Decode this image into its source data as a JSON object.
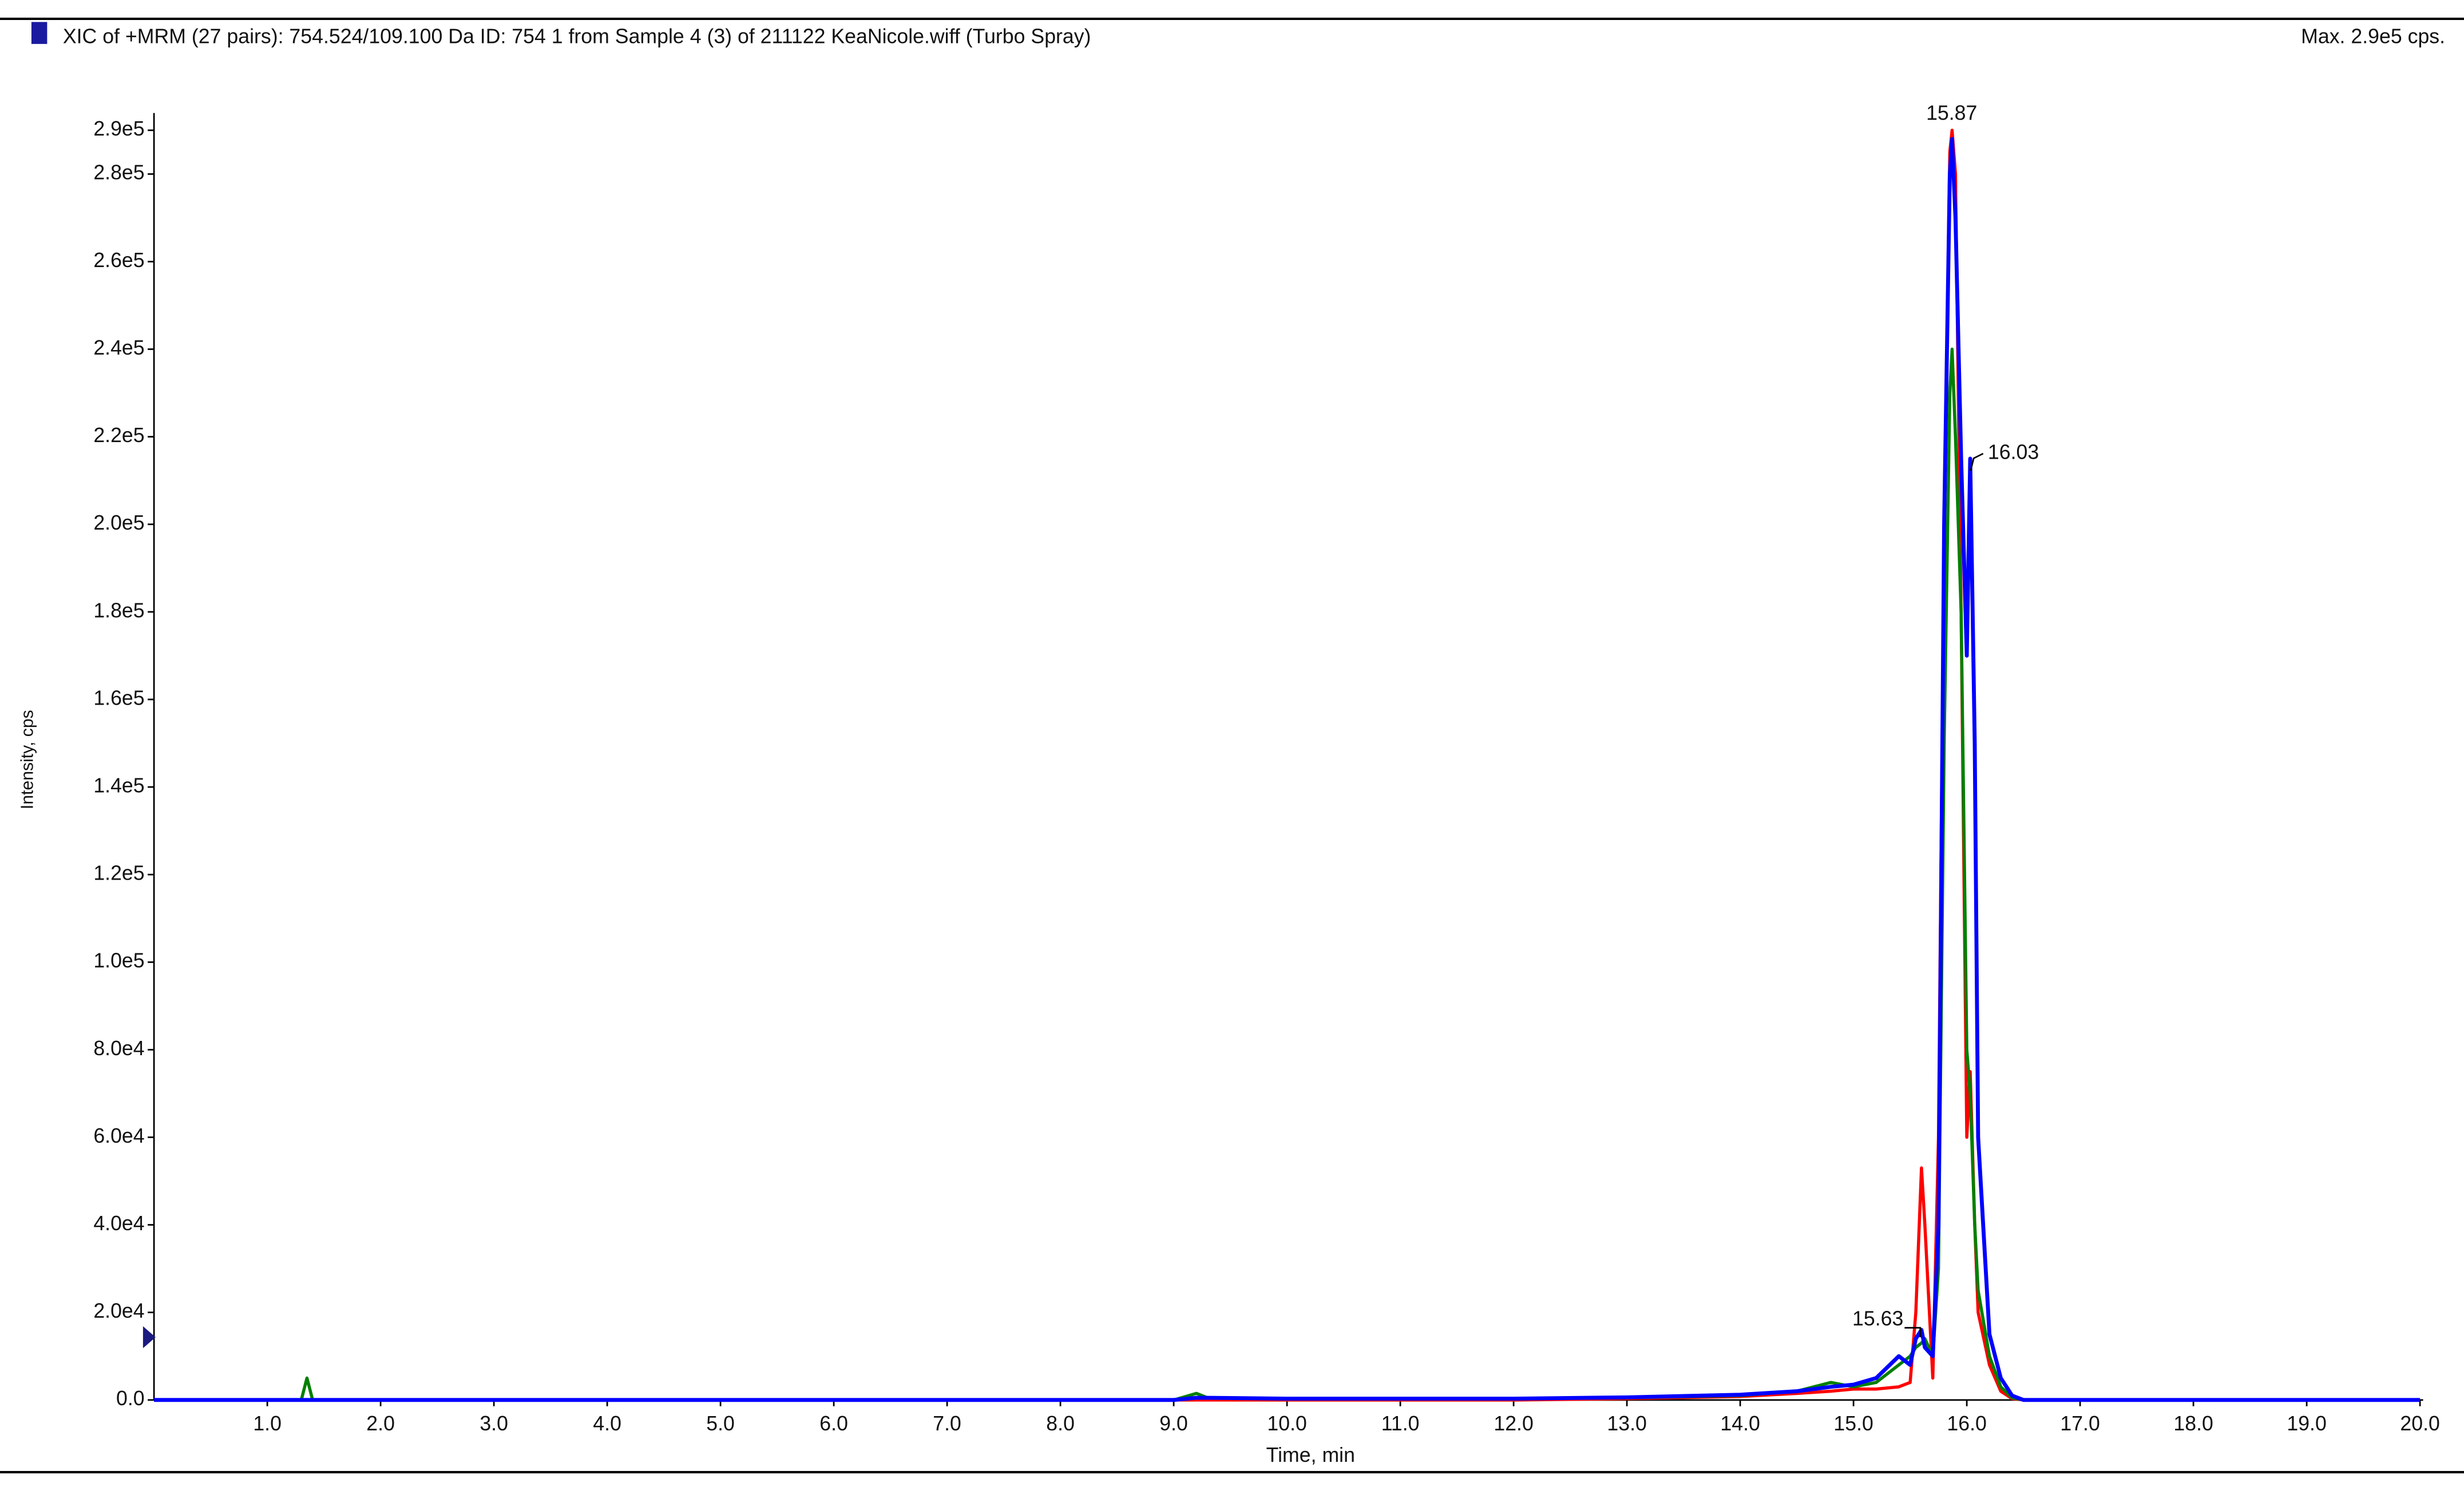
{
  "chart_data": {
    "type": "line",
    "title": "XIC of +MRM (27 pairs): 754.524/109.100 Da ID: 754 1 from Sample 4 (3) of 211122 KeaNicole.wiff (Turbo Spray)",
    "max_label": "Max. 2.9e5 cps.",
    "xlabel": "Time, min",
    "ylabel": "Intensity, cps",
    "annotations": [
      "15.87",
      "16.03",
      "15.63"
    ],
    "x": [
      0,
      1.3,
      1.35,
      1.4,
      1.5,
      3,
      5,
      7,
      9,
      9.2,
      9.3,
      10,
      12,
      13,
      14,
      14.5,
      14.8,
      15,
      15.2,
      15.4,
      15.5,
      15.55,
      15.6,
      15.63,
      15.7,
      15.75,
      15.8,
      15.85,
      15.87,
      15.9,
      15.95,
      16.0,
      16.03,
      16.07,
      16.1,
      16.2,
      16.3,
      16.4,
      16.5,
      17,
      20
    ],
    "series": [
      {
        "color": "#ff0000",
        "values": [
          0,
          0,
          0,
          0,
          0,
          0,
          0,
          0,
          0,
          0,
          0,
          0,
          0,
          300,
          800,
          1500,
          2000,
          2500,
          2500,
          3000,
          4000,
          20000,
          53000,
          40000,
          5000,
          60000,
          200000,
          285000,
          290000,
          280000,
          180000,
          60000,
          75000,
          40000,
          20000,
          8000,
          2000,
          300,
          0,
          0,
          0
        ]
      },
      {
        "color": "#008000",
        "values": [
          0,
          0,
          5000,
          0,
          0,
          0,
          0,
          0,
          0,
          1500,
          500,
          300,
          300,
          500,
          1000,
          2000,
          4000,
          3000,
          4000,
          8000,
          10000,
          12000,
          13000,
          14000,
          10000,
          30000,
          150000,
          230000,
          240000,
          220000,
          180000,
          80000,
          70000,
          40000,
          25000,
          10000,
          3000,
          500,
          0,
          0,
          0
        ]
      },
      {
        "color": "#0000ff",
        "values": [
          0,
          0,
          0,
          0,
          0,
          0,
          0,
          0,
          0,
          500,
          500,
          300,
          300,
          600,
          1200,
          2000,
          3000,
          3500,
          5000,
          10000,
          8000,
          14000,
          16000,
          12000,
          10000,
          40000,
          200000,
          280000,
          288000,
          270000,
          215000,
          170000,
          215000,
          150000,
          60000,
          15000,
          5000,
          1000,
          0,
          0,
          0
        ]
      }
    ],
    "xlim": [
      0,
      20
    ],
    "xticks": [
      {
        "value": 1,
        "label": "1.0"
      },
      {
        "value": 2,
        "label": "2.0"
      },
      {
        "value": 3,
        "label": "3.0"
      },
      {
        "value": 4,
        "label": "4.0"
      },
      {
        "value": 5,
        "label": "5.0"
      },
      {
        "value": 6,
        "label": "6.0"
      },
      {
        "value": 7,
        "label": "7.0"
      },
      {
        "value": 8,
        "label": "8.0"
      },
      {
        "value": 9,
        "label": "9.0"
      },
      {
        "value": 10,
        "label": "10.0"
      },
      {
        "value": 11,
        "label": "11.0"
      },
      {
        "value": 12,
        "label": "12.0"
      },
      {
        "value": 13,
        "label": "13.0"
      },
      {
        "value": 14,
        "label": "14.0"
      },
      {
        "value": 15,
        "label": "15.0"
      },
      {
        "value": 16,
        "label": "16.0"
      },
      {
        "value": 17,
        "label": "17.0"
      },
      {
        "value": 18,
        "label": "18.0"
      },
      {
        "value": 19,
        "label": "19.0"
      },
      {
        "value": 20,
        "label": "20.0"
      }
    ],
    "ylim": [
      0,
      290000
    ],
    "yticks": [
      {
        "value": 0,
        "label": "0.0"
      },
      {
        "value": 20000,
        "label": "2.0e4"
      },
      {
        "value": 40000,
        "label": "4.0e4"
      },
      {
        "value": 60000,
        "label": "6.0e4"
      },
      {
        "value": 80000,
        "label": "8.0e4"
      },
      {
        "value": 100000,
        "label": "1.0e5"
      },
      {
        "value": 120000,
        "label": "1.2e5"
      },
      {
        "value": 140000,
        "label": "1.4e5"
      },
      {
        "value": 160000,
        "label": "1.6e5"
      },
      {
        "value": 180000,
        "label": "1.8e5"
      },
      {
        "value": 200000,
        "label": "2.0e5"
      },
      {
        "value": 220000,
        "label": "2.2e5"
      },
      {
        "value": 240000,
        "label": "2.4e5"
      },
      {
        "value": 260000,
        "label": "2.6e5"
      },
      {
        "value": 280000,
        "label": "2.8e5"
      },
      {
        "value": 290000,
        "label": "2.9e5"
      }
    ]
  }
}
